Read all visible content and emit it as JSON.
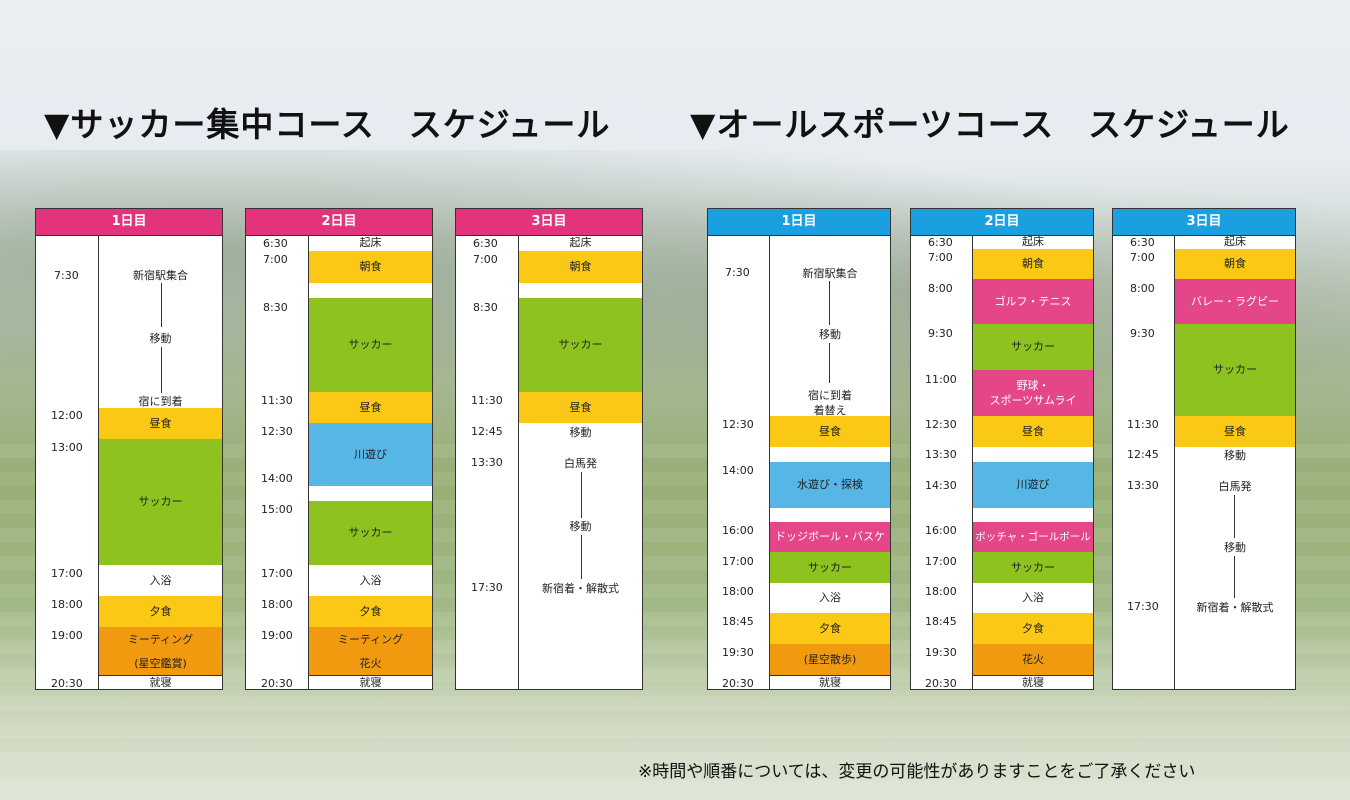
{
  "soccer": {
    "title": "▼サッカー集中コース　スケジュール",
    "day1": {
      "header": "1日目",
      "times": [
        "7:30",
        "12:00",
        "13:00",
        "17:00",
        "18:00",
        "19:00",
        "20:30"
      ],
      "items": [
        "新宿駅集合",
        "移動",
        "宿に到着",
        "昼食",
        "サッカー",
        "入浴",
        "夕食",
        "ミーティング",
        "(星空鑑賞)",
        "就寝"
      ]
    },
    "day2": {
      "header": "2日目",
      "times": [
        "6:30",
        "7:00",
        "8:30",
        "11:30",
        "12:30",
        "14:00",
        "15:00",
        "17:00",
        "18:00",
        "19:00",
        "20:30"
      ],
      "items": [
        "起床",
        "朝食",
        "サッカー",
        "昼食",
        "川遊び",
        "サッカー",
        "入浴",
        "夕食",
        "ミーティング",
        "花火",
        "就寝"
      ]
    },
    "day3": {
      "header": "3日目",
      "times": [
        "6:30",
        "7:00",
        "8:30",
        "11:30",
        "12:45",
        "13:30",
        "17:30"
      ],
      "items": [
        "起床",
        "朝食",
        "サッカー",
        "昼食",
        "移動",
        "白馬発",
        "移動",
        "新宿着・解散式"
      ]
    }
  },
  "allsports": {
    "title": "▼オールスポーツコース　スケジュール",
    "day1": {
      "header": "1日目",
      "times": [
        "7:30",
        "12:30",
        "14:00",
        "16:00",
        "17:00",
        "18:00",
        "18:45",
        "19:30",
        "20:30"
      ],
      "items": [
        "新宿駅集合",
        "移動",
        "宿に到着",
        "着替え",
        "昼食",
        "水遊び・探検",
        "ドッジボール・バスケ",
        "サッカー",
        "入浴",
        "夕食",
        "(星空散歩)",
        "就寝"
      ]
    },
    "day2": {
      "header": "2日目",
      "times": [
        "6:30",
        "7:00",
        "8:00",
        "9:30",
        "11:00",
        "12:30",
        "13:30",
        "14:30",
        "16:00",
        "17:00",
        "18:00",
        "18:45",
        "19:30",
        "20:30"
      ],
      "items": [
        "起床",
        "朝食",
        "ゴルフ・テニス",
        "サッカー",
        "野球・",
        "スポーツサムライ",
        "昼食",
        "川遊び",
        "ボッチャ・ゴールボール",
        "サッカー",
        "入浴",
        "夕食",
        "花火",
        "就寝"
      ]
    },
    "day3": {
      "header": "3日目",
      "times": [
        "6:30",
        "7:00",
        "8:00",
        "9:30",
        "11:30",
        "12:45",
        "13:30",
        "17:30"
      ],
      "items": [
        "起床",
        "朝食",
        "バレー・ラグビー",
        "サッカー",
        "昼食",
        "移動",
        "白馬発",
        "移動",
        "新宿着・解散式"
      ]
    }
  },
  "note": "※時間や順番については、変更の可能性がありますことをご了承ください",
  "colors": {
    "pink_header": "#e3337c",
    "blue_header": "#1aa0e0",
    "yellow": "#fbc815",
    "green": "#8dc21f",
    "orange": "#f29a0f",
    "pink_block": "#e5468a",
    "light_blue": "#56b6e5"
  }
}
